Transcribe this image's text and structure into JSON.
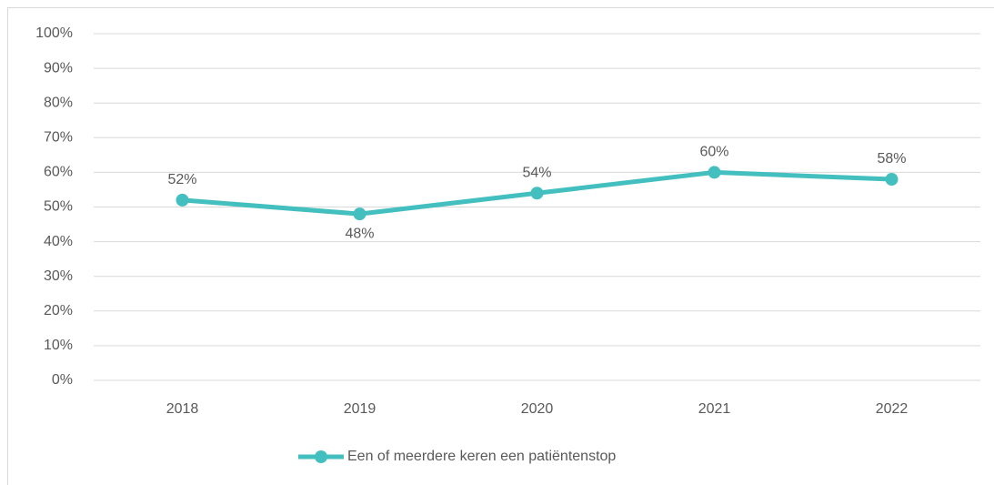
{
  "chart_data": {
    "type": "line",
    "categories": [
      "2018",
      "2019",
      "2020",
      "2021",
      "2022"
    ],
    "series": [
      {
        "name": "Een of meerdere keren een patiëntenstop",
        "color": "#44bfbf",
        "values": [
          52,
          48,
          54,
          60,
          58
        ],
        "value_labels": [
          "52%",
          "48%",
          "54%",
          "60%",
          "58%"
        ]
      }
    ],
    "ylim": [
      0,
      100
    ],
    "yticks": [
      {
        "value": 0,
        "label": "0%"
      },
      {
        "value": 10,
        "label": "10%"
      },
      {
        "value": 20,
        "label": "20%"
      },
      {
        "value": 30,
        "label": "30%"
      },
      {
        "value": 40,
        "label": "40%"
      },
      {
        "value": 50,
        "label": "50%"
      },
      {
        "value": 60,
        "label": "60%"
      },
      {
        "value": 70,
        "label": "70%"
      },
      {
        "value": 80,
        "label": "80%"
      },
      {
        "value": 90,
        "label": "90%"
      },
      {
        "value": 100,
        "label": "100%"
      }
    ],
    "grid": true,
    "legend": "bottom"
  }
}
